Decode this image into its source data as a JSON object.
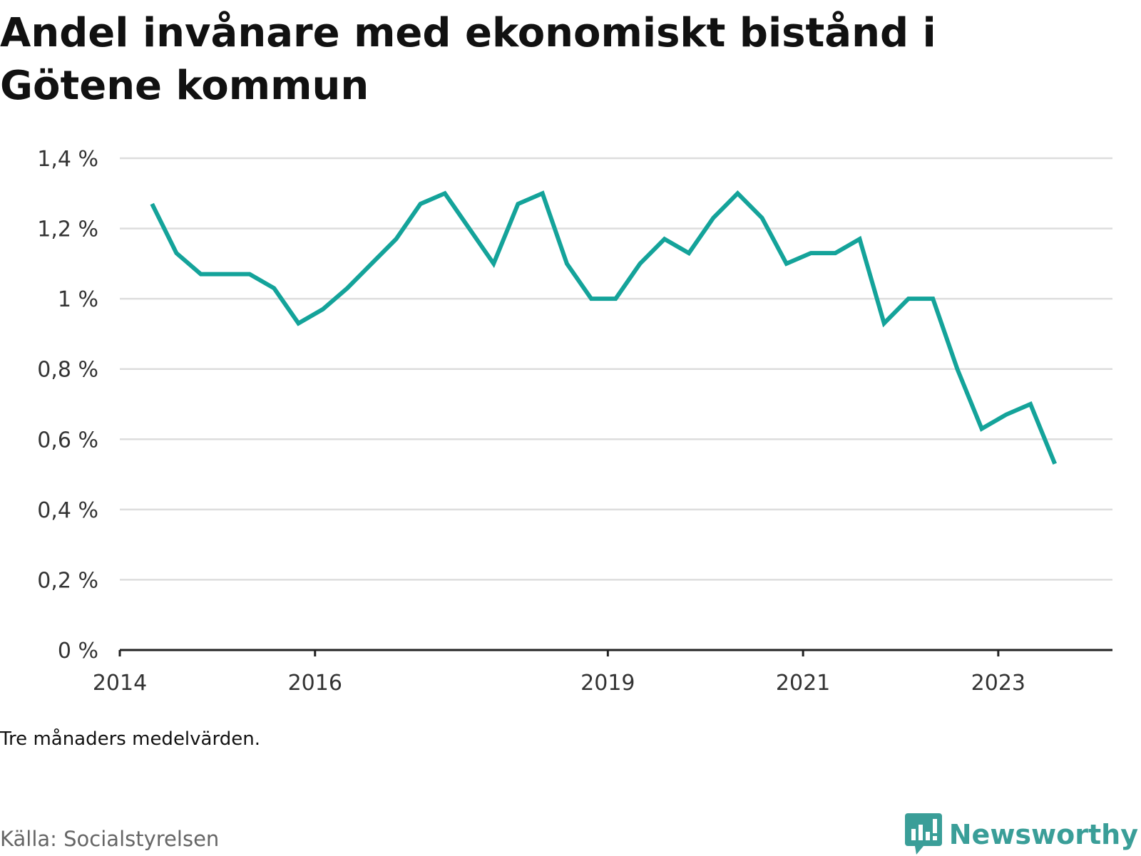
{
  "title": "Andel invånare med ekonomiskt bistånd i Götene kommun",
  "note": "Tre månaders medelvärden.",
  "source": "Källa: Socialstyrelsen",
  "brand": {
    "name": "Newsworthy",
    "icon": "newsworthy-logo-icon",
    "color": "#3a9e98"
  },
  "colors": {
    "line": "#14a39a",
    "grid": "#dddddd",
    "axis": "#222222"
  },
  "chart_data": {
    "type": "line",
    "title": "Andel invånare med ekonomiskt bistånd i Götene kommun",
    "xlabel": "",
    "ylabel": "",
    "ylim": [
      0,
      1.4
    ],
    "yticks": [
      0,
      0.2,
      0.4,
      0.6,
      0.8,
      1.0,
      1.2,
      1.4
    ],
    "ytick_labels": [
      "0 %",
      "0,2 %",
      "0,4 %",
      "0,6 %",
      "0,8 %",
      "1 %",
      "1,2 %",
      "1,4 %"
    ],
    "xlim": [
      2014.0,
      2024.17
    ],
    "xticks": [
      2014,
      2016,
      2019,
      2021,
      2023
    ],
    "xtick_labels": [
      "2014",
      "2016",
      "2019",
      "2021",
      "2023"
    ],
    "grid": true,
    "series": [
      {
        "x": [
          2014.33,
          2014.58,
          2014.83,
          2015.08,
          2015.33,
          2015.58,
          2015.83,
          2016.08,
          2016.33,
          2016.58,
          2016.83,
          2017.08,
          2017.33,
          2017.58,
          2017.83,
          2018.08,
          2018.33,
          2018.58,
          2018.83,
          2019.08,
          2019.33,
          2019.58,
          2019.83,
          2020.08,
          2020.33,
          2020.58,
          2020.83,
          2021.08,
          2021.33,
          2021.58,
          2021.83,
          2022.08,
          2022.33,
          2022.58,
          2022.83,
          2023.08,
          2023.33,
          2023.58
        ],
        "values": [
          1.27,
          1.13,
          1.07,
          1.07,
          1.07,
          1.03,
          0.93,
          0.97,
          1.03,
          1.1,
          1.17,
          1.27,
          1.3,
          1.2,
          1.1,
          1.27,
          1.3,
          1.1,
          1.0,
          1.0,
          1.1,
          1.17,
          1.13,
          1.23,
          1.3,
          1.23,
          1.1,
          1.13,
          1.13,
          1.17,
          0.93,
          1.0,
          1.0,
          0.8,
          0.63,
          0.67,
          0.7,
          0.53
        ]
      }
    ]
  }
}
